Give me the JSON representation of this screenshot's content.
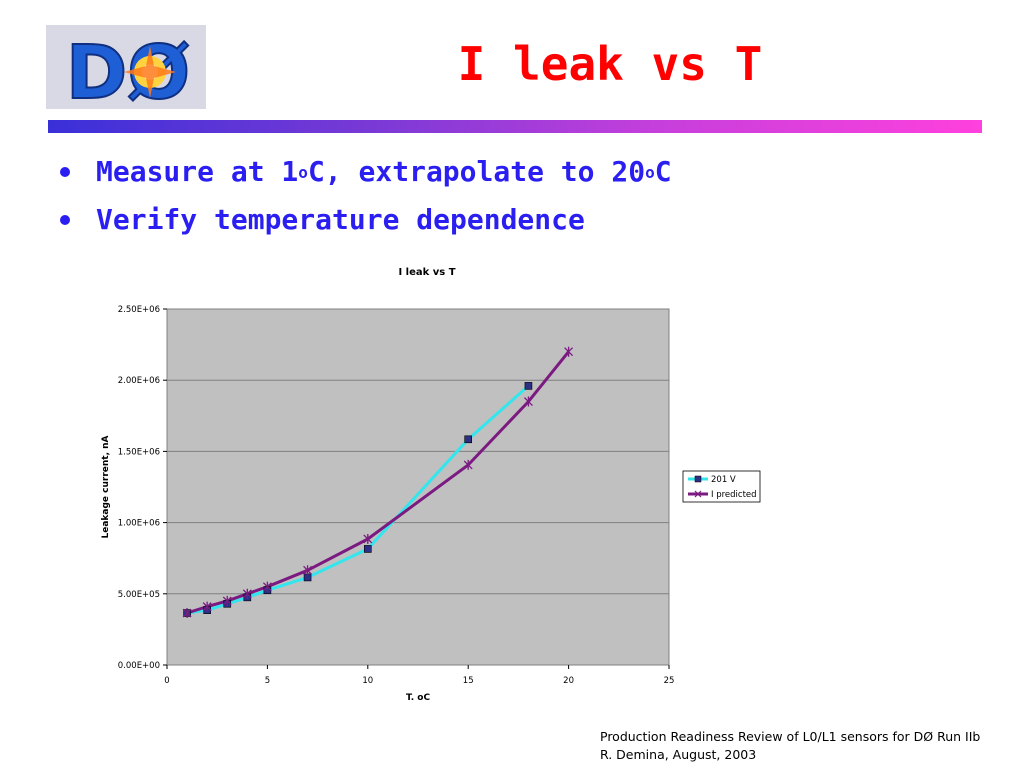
{
  "slide": {
    "title": "I leak vs T",
    "bullets": [
      {
        "before": "Measure at 1",
        "sup1": "o",
        "middle": "C, extrapolate to 20",
        "sup2": "o",
        "after": "C"
      },
      {
        "before": "Verify temperature dependence",
        "sup1": "",
        "middle": "",
        "sup2": "",
        "after": ""
      }
    ],
    "logo_text": "DØ",
    "footer": {
      "line1": "Production Readiness Review of L0/L1 sensors for DØ Run IIb",
      "line2": "R. Demina, August, 2003"
    }
  },
  "colors": {
    "title": "#ff0000",
    "bullets": "#2a1ff0",
    "plot_area": "#c0c0c0",
    "series_201v": "#33e6ee",
    "series_201v_marker": "#2b2f86",
    "series_predicted": "#7b1a80"
  },
  "chart_data": {
    "type": "line",
    "title": "I leak vs T",
    "xlabel": "T. oC",
    "ylabel": "Leakage current, nA",
    "xlim": [
      0,
      25
    ],
    "ylim": [
      0,
      2500000
    ],
    "x_ticks": [
      0,
      5,
      10,
      15,
      20,
      25
    ],
    "x_tick_labels": [
      "0",
      "5",
      "10",
      "15",
      "20",
      "25"
    ],
    "y_ticks": [
      0,
      500000,
      1000000,
      1500000,
      2000000,
      2500000
    ],
    "y_tick_labels": [
      "0.00E+00",
      "5.00E+05",
      "1.00E+06",
      "1.50E+06",
      "2.00E+06",
      "2.50E+06"
    ],
    "grid": "horizontal",
    "legend_position": "right",
    "series": [
      {
        "name": "201 V",
        "marker": "square",
        "x": [
          1,
          2,
          3,
          4,
          5,
          7,
          10,
          15,
          18
        ],
        "y": [
          365000,
          385000,
          430000,
          475000,
          525000,
          615000,
          815000,
          1585000,
          1960000
        ]
      },
      {
        "name": "I predicted",
        "marker": "star",
        "x": [
          1,
          2,
          3,
          4,
          5,
          7,
          10,
          15,
          18,
          20
        ],
        "y": [
          365000,
          410000,
          450000,
          500000,
          550000,
          665000,
          885000,
          1405000,
          1850000,
          2200000
        ]
      }
    ]
  }
}
